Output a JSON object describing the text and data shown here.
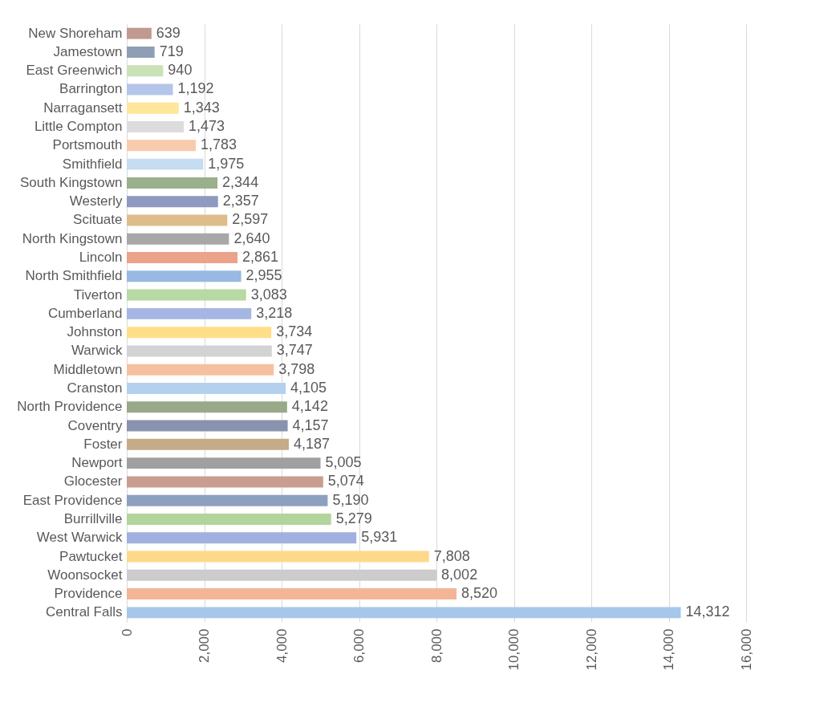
{
  "chart_data": {
    "type": "bar",
    "orientation": "horizontal",
    "grid": "x",
    "categories": [
      "New Shoreham",
      "Jamestown",
      "East Greenwich",
      "Barrington",
      "Narragansett",
      "Little Compton",
      "Portsmouth",
      "Smithfield",
      "South Kingstown",
      "Westerly",
      "Scituate",
      "North Kingstown",
      "Lincoln",
      "North Smithfield",
      "Tiverton",
      "Cumberland",
      "Johnston",
      "Warwick",
      "Middletown",
      "Cranston",
      "North Providence",
      "Coventry",
      "Foster",
      "Newport",
      "Glocester",
      "East Providence",
      "Burrillville",
      "West Warwick",
      "Pawtucket",
      "Woonsocket",
      "Providence",
      "Central Falls"
    ],
    "values": [
      639,
      719,
      940,
      1192,
      1343,
      1473,
      1783,
      1975,
      2344,
      2357,
      2597,
      2640,
      2861,
      2955,
      3083,
      3218,
      3734,
      3747,
      3798,
      4105,
      4142,
      4157,
      4187,
      5005,
      5074,
      5190,
      5279,
      5931,
      7808,
      8002,
      8520,
      14312
    ],
    "value_labels": [
      "639",
      "719",
      "940",
      "1,192",
      "1,343",
      "1,473",
      "1,783",
      "1,975",
      "2,344",
      "2,357",
      "2,597",
      "2,640",
      "2,861",
      "2,955",
      "3,083",
      "3,218",
      "3,734",
      "3,747",
      "3,798",
      "4,105",
      "4,142",
      "4,157",
      "4,187",
      "5,005",
      "5,074",
      "5,190",
      "5,279",
      "5,931",
      "7,808",
      "8,002",
      "8,520",
      "14,312"
    ],
    "colors": [
      "#c0998f",
      "#8e9eb5",
      "#c9e2b8",
      "#b4c5ea",
      "#ffe699",
      "#dcdcdc",
      "#f8cbad",
      "#c5dcf1",
      "#9ab08c",
      "#8e9ac0",
      "#ddbd8a",
      "#a8a8a8",
      "#eba38a",
      "#97b9e2",
      "#b7d9a3",
      "#a5b6e3",
      "#ffde88",
      "#d3d3d3",
      "#f6c0a0",
      "#b3d0ee",
      "#98a98a",
      "#8a93ad",
      "#c6ab88",
      "#a0a0a0",
      "#c99d90",
      "#8ca1bf",
      "#b1d59c",
      "#a1b0de",
      "#ffd98a",
      "#cccccc",
      "#f4b596",
      "#a6c6ea"
    ],
    "xlim": [
      0,
      16000
    ],
    "xticks": [
      0,
      {
        "value": 2000,
        "label": "2,000"
      },
      {
        "value": 4000,
        "label": "4,000"
      },
      {
        "value": 6000,
        "label": "6,000"
      },
      {
        "value": 8000,
        "label": "8,000"
      },
      {
        "value": 10000,
        "label": "10,000"
      },
      {
        "value": 12000,
        "label": "12,000"
      },
      {
        "value": 14000,
        "label": "14,000"
      },
      {
        "value": 16000,
        "label": "16,000"
      }
    ]
  }
}
